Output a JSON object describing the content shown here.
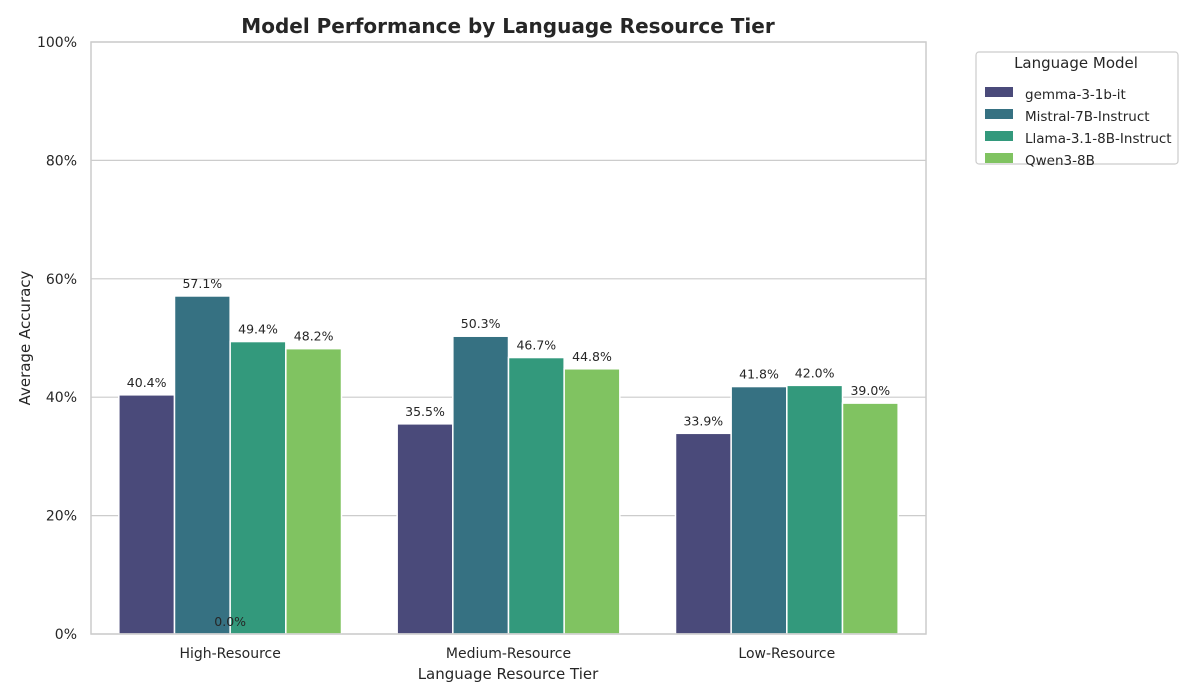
{
  "chart_data": {
    "type": "bar",
    "title": "Model Performance by Language Resource Tier",
    "xlabel": "Language Resource Tier",
    "ylabel": "Average Accuracy",
    "categories": [
      "High-Resource",
      "Medium-Resource",
      "Low-Resource"
    ],
    "ylim": [
      0,
      100
    ],
    "yticks": [
      "0%",
      "20%",
      "40%",
      "60%",
      "80%",
      "100%"
    ],
    "grid": true,
    "legend": {
      "title": "Language Model",
      "placement": "outside-top-right"
    },
    "series": [
      {
        "name": "gemma-3-1b-it",
        "color": "#4a4a7a",
        "values": [
          40.4,
          35.5,
          33.9
        ],
        "labels": [
          "40.4%",
          "35.5%",
          "33.9%"
        ]
      },
      {
        "name": "Mistral-7B-Instruct",
        "color": "#367182",
        "values": [
          57.1,
          50.3,
          41.8
        ],
        "labels": [
          "57.1%",
          "50.3%",
          "41.8%"
        ]
      },
      {
        "name": "Llama-3.1-8B-Instruct",
        "color": "#33997c",
        "values": [
          49.4,
          46.7,
          42.0
        ],
        "labels": [
          "49.4%",
          "46.7%",
          "42.0%"
        ]
      },
      {
        "name": "Qwen3-8B",
        "color": "#80c361",
        "values": [
          48.2,
          44.8,
          39.0
        ],
        "labels": [
          "48.2%",
          "44.8%",
          "39.0%"
        ]
      }
    ],
    "annotations": [
      {
        "text": "0.0%",
        "category": "High-Resource",
        "y": 0
      }
    ]
  }
}
